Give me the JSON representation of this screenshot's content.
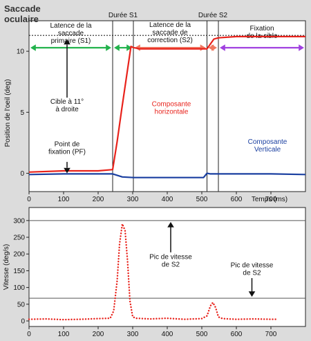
{
  "title": "Saccade oculaire",
  "colors": {
    "horizontal": "#e8221b",
    "vertical": "#1a3fa0",
    "velocity": "#e8221b",
    "green": "#22b24c",
    "salmon": "#f07860",
    "violet": "#a040e0",
    "panel_bg": "#ffffff",
    "fig_bg": "#dcdcdc"
  },
  "top_panel": {
    "phases": [
      {
        "label_lines": [
          "Latence de la",
          "saccade",
          "primaire (S1)"
        ],
        "x_range": [
          0,
          242
        ],
        "arrow_color": "green"
      },
      {
        "label_lines": [
          "Durée S1"
        ],
        "x_range": [
          242,
          302
        ],
        "arrow_color": "green"
      },
      {
        "label_lines": [
          "Latence de la",
          "saccade de",
          "correction (S2)"
        ],
        "x_range": [
          302,
          515
        ],
        "arrow_color": "salmon"
      },
      {
        "label_lines": [
          "Durée S2"
        ],
        "x_range": [
          515,
          548
        ],
        "arrow_color": "salmon"
      },
      {
        "label_lines": [
          "Fixation",
          "de la cible"
        ],
        "x_range": [
          548,
          800
        ],
        "arrow_color": "violet"
      }
    ],
    "annotations": {
      "target": [
        "Cible à 11°",
        "à droite"
      ],
      "fixation": [
        "Point de",
        "fixation (PF)"
      ],
      "horizontal": [
        "Composante",
        "horizontale"
      ],
      "vertical": [
        "Composante",
        "Verticale"
      ]
    }
  },
  "bottom_panel": {
    "annotations": {
      "peak_s2_a": [
        "Pic de vitesse",
        "de S2"
      ],
      "peak_s2_b": [
        "Pic de vitesse",
        "de S2"
      ]
    }
  },
  "chart_data": [
    {
      "type": "line",
      "xlabel": "Temps (ms)",
      "ylabel": "Position de l'oeil (deg)",
      "xlim": [
        0,
        800
      ],
      "ylim": [
        -1.5,
        12.5
      ],
      "xticks": [
        0,
        100,
        200,
        300,
        400,
        500,
        600,
        700
      ],
      "yticks": [
        0,
        5,
        10
      ],
      "vlines": [
        242,
        302,
        515,
        548
      ],
      "target_level": 11.3,
      "series": [
        {
          "name": "Composante horizontale",
          "x": [
            0,
            100,
            200,
            242,
            255,
            268,
            282,
            295,
            302,
            320,
            400,
            500,
            515,
            525,
            535,
            548,
            600,
            700,
            800
          ],
          "y": [
            0.1,
            0.2,
            0.2,
            0.3,
            2.6,
            5.2,
            7.9,
            10.4,
            10.3,
            10.2,
            10.2,
            10.2,
            10.2,
            10.6,
            11.0,
            11.1,
            11.2,
            11.2,
            11.2
          ]
        },
        {
          "name": "Composante Verticale",
          "x": [
            0,
            100,
            200,
            242,
            270,
            302,
            400,
            505,
            515,
            525,
            548,
            600,
            700,
            800
          ],
          "y": [
            -0.1,
            -0.05,
            -0.05,
            -0.05,
            -0.3,
            -0.35,
            -0.35,
            -0.35,
            0.0,
            -0.05,
            -0.05,
            -0.05,
            -0.05,
            -0.1
          ]
        }
      ]
    },
    {
      "type": "line",
      "xlabel": "",
      "ylabel": "Vitesse (deg/s)",
      "xlim": [
        0,
        800
      ],
      "ylim": [
        0,
        310
      ],
      "xticks": [
        0,
        100,
        200,
        300,
        400,
        500,
        600,
        700
      ],
      "yticks": [
        0,
        50,
        100,
        150,
        200,
        250,
        300
      ],
      "hlines": [
        300,
        68
      ],
      "series": [
        {
          "name": "Vitesse",
          "x": [
            0,
            50,
            100,
            150,
            200,
            235,
            245,
            255,
            262,
            270,
            278,
            285,
            292,
            300,
            310,
            350,
            400,
            450,
            500,
            515,
            525,
            532,
            540,
            548,
            560,
            600,
            650,
            700,
            720
          ],
          "y": [
            5,
            6,
            4,
            5,
            7,
            8,
            30,
            120,
            230,
            290,
            270,
            180,
            60,
            12,
            8,
            6,
            8,
            5,
            7,
            15,
            45,
            55,
            40,
            12,
            7,
            5,
            6,
            5,
            5
          ]
        }
      ]
    }
  ]
}
